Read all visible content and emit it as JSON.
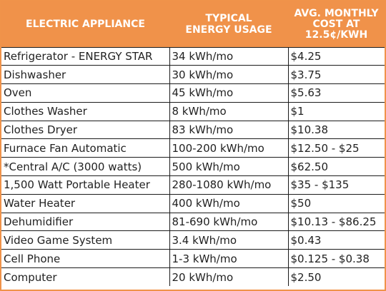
{
  "headers": [
    "ELECTRIC APPLIANCE",
    "TYPICAL\nENERGY USAGE",
    "AVG. MONTHLY\nCOST AT\n12.5¢/KWH"
  ],
  "colors": {
    "header_bg": "#f0924a",
    "header_text": "#ffffff",
    "grid": "#1b1b1b",
    "border": "#f0934a"
  },
  "rows": [
    {
      "appliance": "Refrigerator - ENERGY STAR",
      "usage": "34 kWh/mo",
      "cost": "$4.25"
    },
    {
      "appliance": "Dishwasher",
      "usage": "30 kWh/mo",
      "cost": "$3.75"
    },
    {
      "appliance": "Oven",
      "usage": "45 kWh/mo",
      "cost": "$5.63"
    },
    {
      "appliance": "Clothes Washer",
      "usage": "8 kWh/mo",
      "cost": "$1"
    },
    {
      "appliance": "Clothes Dryer",
      "usage": "83 kWh/mo",
      "cost": "$10.38"
    },
    {
      "appliance": "Furnace Fan Automatic",
      "usage": "100-200 kWh/mo",
      "cost": "$12.50 - $25"
    },
    {
      "appliance": "*Central A/C (3000 watts)",
      "usage": "500 kWh/mo",
      "cost": "$62.50"
    },
    {
      "appliance": "1,500 Watt Portable Heater",
      "usage": "280-1080 kWh/mo",
      "cost": "$35 - $135"
    },
    {
      "appliance": "Water Heater",
      "usage": "400 kWh/mo",
      "cost": "$50"
    },
    {
      "appliance": "Dehumidifier",
      "usage": "81-690 kWh/mo",
      "cost": "$10.13 - $86.25"
    },
    {
      "appliance": "Video Game System",
      "usage": "3.4 kWh/mo",
      "cost": "$0.43"
    },
    {
      "appliance": "Cell Phone",
      "usage": "1-3 kWh/mo",
      "cost": "$0.125 - $0.38"
    },
    {
      "appliance": "Computer",
      "usage": "20 kWh/mo",
      "cost": "$2.50"
    }
  ]
}
